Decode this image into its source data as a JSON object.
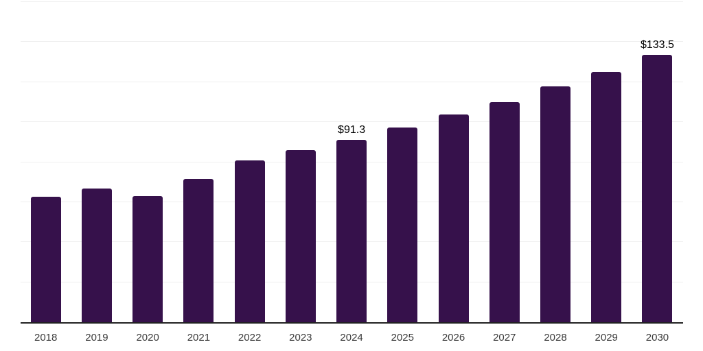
{
  "chart_data": {
    "type": "bar",
    "title": "",
    "xlabel": "",
    "ylabel": "",
    "categories": [
      "2018",
      "2019",
      "2020",
      "2021",
      "2022",
      "2023",
      "2024",
      "2025",
      "2026",
      "2027",
      "2028",
      "2029",
      "2030"
    ],
    "values": [
      62.6,
      66.7,
      63.2,
      71.5,
      81.0,
      86.1,
      91.3,
      97.2,
      103.7,
      110.1,
      117.8,
      125.2,
      133.5
    ],
    "data_labels": [
      {
        "index": 6,
        "text": "$91.3"
      },
      {
        "index": 12,
        "text": "$133.5"
      }
    ],
    "ylim": [
      0,
      160
    ],
    "gridline_step": 20,
    "grid": true,
    "legend": "none",
    "y_axis_tick_labels_visible": false,
    "colors": {
      "bar": "#36114B",
      "gridline": "#efefef",
      "axis_line": "#222222",
      "tick_label": "#3a3a3a",
      "data_label": "#000000",
      "background": "#ffffff"
    }
  }
}
